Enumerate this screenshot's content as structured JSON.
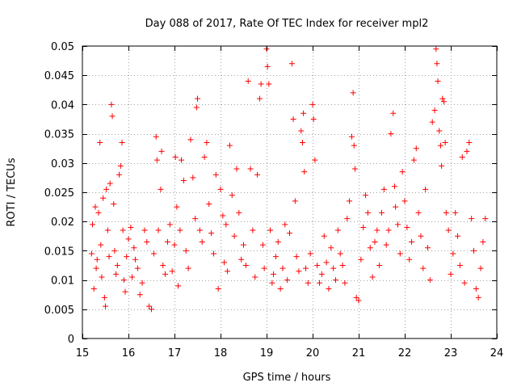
{
  "chart_data": {
    "type": "scatter",
    "title": "Day 088 of 2017, Rate Of TEC Index for receiver mpl2",
    "xlabel": "GPS time / hours",
    "ylabel": "ROTI / TECUs",
    "xlim": [
      15,
      24
    ],
    "ylim": [
      0,
      0.05
    ],
    "x_ticks": [
      "15",
      "16",
      "17",
      "18",
      "19",
      "20",
      "21",
      "22",
      "23",
      "24"
    ],
    "y_ticks": [
      "0",
      "0.005",
      "0.01",
      "0.015",
      "0.02",
      "0.025",
      "0.03",
      "0.035",
      "0.04",
      "0.045",
      "0.05"
    ],
    "grid": true,
    "marker": "+",
    "colors": {
      "series": "#ff0000",
      "grid": "#a0a0a0",
      "axis": "#000000"
    },
    "series": [
      {
        "name": "ROTI",
        "points": [
          [
            15.2,
            0.0145
          ],
          [
            15.22,
            0.0195
          ],
          [
            15.25,
            0.0085
          ],
          [
            15.28,
            0.0225
          ],
          [
            15.3,
            0.012
          ],
          [
            15.32,
            0.0135
          ],
          [
            15.35,
            0.0215
          ],
          [
            15.38,
            0.0335
          ],
          [
            15.4,
            0.016
          ],
          [
            15.42,
            0.0105
          ],
          [
            15.45,
            0.024
          ],
          [
            15.48,
            0.007
          ],
          [
            15.5,
            0.0055
          ],
          [
            15.52,
            0.0255
          ],
          [
            15.55,
            0.0185
          ],
          [
            15.58,
            0.014
          ],
          [
            15.6,
            0.0265
          ],
          [
            15.63,
            0.04
          ],
          [
            15.65,
            0.038
          ],
          [
            15.68,
            0.023
          ],
          [
            15.7,
            0.015
          ],
          [
            15.73,
            0.011
          ],
          [
            15.76,
            0.0125
          ],
          [
            15.8,
            0.028
          ],
          [
            15.83,
            0.0295
          ],
          [
            15.86,
            0.0335
          ],
          [
            15.88,
            0.0185
          ],
          [
            15.9,
            0.01
          ],
          [
            15.93,
            0.008
          ],
          [
            15.96,
            0.014
          ],
          [
            16.0,
            0.017
          ],
          [
            16.05,
            0.019
          ],
          [
            16.08,
            0.0105
          ],
          [
            16.12,
            0.0155
          ],
          [
            16.15,
            0.0135
          ],
          [
            16.2,
            0.012
          ],
          [
            16.25,
            0.0075
          ],
          [
            16.3,
            0.0095
          ],
          [
            16.35,
            0.0185
          ],
          [
            16.4,
            0.0165
          ],
          [
            16.45,
            0.0055
          ],
          [
            16.5,
            0.005
          ],
          [
            16.55,
            0.0145
          ],
          [
            16.6,
            0.0345
          ],
          [
            16.62,
            0.0305
          ],
          [
            16.65,
            0.0185
          ],
          [
            16.7,
            0.0255
          ],
          [
            16.72,
            0.032
          ],
          [
            16.75,
            0.0125
          ],
          [
            16.8,
            0.011
          ],
          [
            16.85,
            0.0165
          ],
          [
            16.9,
            0.0195
          ],
          [
            16.95,
            0.0115
          ],
          [
            17.0,
            0.016
          ],
          [
            17.02,
            0.031
          ],
          [
            17.05,
            0.0225
          ],
          [
            17.08,
            0.009
          ],
          [
            17.12,
            0.0185
          ],
          [
            17.15,
            0.0305
          ],
          [
            17.2,
            0.027
          ],
          [
            17.25,
            0.015
          ],
          [
            17.3,
            0.012
          ],
          [
            17.35,
            0.034
          ],
          [
            17.4,
            0.0275
          ],
          [
            17.45,
            0.0205
          ],
          [
            17.48,
            0.0395
          ],
          [
            17.5,
            0.041
          ],
          [
            17.55,
            0.0185
          ],
          [
            17.6,
            0.0165
          ],
          [
            17.65,
            0.031
          ],
          [
            17.7,
            0.0335
          ],
          [
            17.75,
            0.023
          ],
          [
            17.8,
            0.018
          ],
          [
            17.85,
            0.0145
          ],
          [
            17.9,
            0.028
          ],
          [
            17.95,
            0.0085
          ],
          [
            18.0,
            0.0255
          ],
          [
            18.05,
            0.021
          ],
          [
            18.08,
            0.013
          ],
          [
            18.12,
            0.0195
          ],
          [
            18.15,
            0.0115
          ],
          [
            18.2,
            0.033
          ],
          [
            18.25,
            0.0245
          ],
          [
            18.3,
            0.0175
          ],
          [
            18.35,
            0.029
          ],
          [
            18.4,
            0.0215
          ],
          [
            18.45,
            0.0135
          ],
          [
            18.5,
            0.016
          ],
          [
            18.55,
            0.0125
          ],
          [
            18.6,
            0.044
          ],
          [
            18.65,
            0.029
          ],
          [
            18.7,
            0.0185
          ],
          [
            18.75,
            0.0105
          ],
          [
            18.8,
            0.028
          ],
          [
            18.85,
            0.041
          ],
          [
            18.88,
            0.0435
          ],
          [
            18.92,
            0.016
          ],
          [
            18.95,
            0.012
          ],
          [
            19.0,
            0.0495
          ],
          [
            19.02,
            0.0465
          ],
          [
            19.05,
            0.0435
          ],
          [
            19.08,
            0.0185
          ],
          [
            19.12,
            0.0095
          ],
          [
            19.15,
            0.011
          ],
          [
            19.2,
            0.014
          ],
          [
            19.25,
            0.0165
          ],
          [
            19.3,
            0.0085
          ],
          [
            19.35,
            0.012
          ],
          [
            19.4,
            0.0195
          ],
          [
            19.45,
            0.01
          ],
          [
            19.5,
            0.018
          ],
          [
            19.55,
            0.047
          ],
          [
            19.58,
            0.0375
          ],
          [
            19.62,
            0.0235
          ],
          [
            19.65,
            0.014
          ],
          [
            19.7,
            0.0115
          ],
          [
            19.75,
            0.0355
          ],
          [
            19.78,
            0.0335
          ],
          [
            19.8,
            0.0385
          ],
          [
            19.82,
            0.0285
          ],
          [
            19.85,
            0.012
          ],
          [
            19.9,
            0.0095
          ],
          [
            19.95,
            0.0145
          ],
          [
            20.0,
            0.04
          ],
          [
            20.02,
            0.0375
          ],
          [
            20.05,
            0.0305
          ],
          [
            20.1,
            0.0125
          ],
          [
            20.15,
            0.0095
          ],
          [
            20.2,
            0.011
          ],
          [
            20.25,
            0.0175
          ],
          [
            20.3,
            0.013
          ],
          [
            20.35,
            0.0085
          ],
          [
            20.4,
            0.0155
          ],
          [
            20.45,
            0.012
          ],
          [
            20.5,
            0.01
          ],
          [
            20.55,
            0.0185
          ],
          [
            20.6,
            0.0145
          ],
          [
            20.65,
            0.0125
          ],
          [
            20.7,
            0.0095
          ],
          [
            20.75,
            0.0205
          ],
          [
            20.8,
            0.0235
          ],
          [
            20.85,
            0.0345
          ],
          [
            20.88,
            0.042
          ],
          [
            20.9,
            0.033
          ],
          [
            20.92,
            0.029
          ],
          [
            20.95,
            0.007
          ],
          [
            21.0,
            0.0065
          ],
          [
            21.05,
            0.0135
          ],
          [
            21.1,
            0.019
          ],
          [
            21.15,
            0.0245
          ],
          [
            21.2,
            0.0215
          ],
          [
            21.25,
            0.0155
          ],
          [
            21.3,
            0.0105
          ],
          [
            21.35,
            0.0165
          ],
          [
            21.4,
            0.0185
          ],
          [
            21.45,
            0.0125
          ],
          [
            21.5,
            0.0215
          ],
          [
            21.55,
            0.0255
          ],
          [
            21.6,
            0.016
          ],
          [
            21.65,
            0.0185
          ],
          [
            21.7,
            0.035
          ],
          [
            21.75,
            0.0385
          ],
          [
            21.78,
            0.026
          ],
          [
            21.8,
            0.0225
          ],
          [
            21.85,
            0.0195
          ],
          [
            21.9,
            0.0145
          ],
          [
            21.95,
            0.0285
          ],
          [
            22.0,
            0.0235
          ],
          [
            22.05,
            0.019
          ],
          [
            22.1,
            0.0135
          ],
          [
            22.15,
            0.0165
          ],
          [
            22.2,
            0.0305
          ],
          [
            22.25,
            0.0325
          ],
          [
            22.3,
            0.0215
          ],
          [
            22.35,
            0.0175
          ],
          [
            22.4,
            0.012
          ],
          [
            22.45,
            0.0255
          ],
          [
            22.5,
            0.0155
          ],
          [
            22.55,
            0.01
          ],
          [
            22.6,
            0.037
          ],
          [
            22.65,
            0.039
          ],
          [
            22.68,
            0.0495
          ],
          [
            22.7,
            0.047
          ],
          [
            22.72,
            0.044
          ],
          [
            22.75,
            0.0355
          ],
          [
            22.78,
            0.033
          ],
          [
            22.8,
            0.0295
          ],
          [
            22.82,
            0.041
          ],
          [
            22.85,
            0.0405
          ],
          [
            22.88,
            0.0335
          ],
          [
            22.9,
            0.0215
          ],
          [
            22.95,
            0.0185
          ],
          [
            23.0,
            0.011
          ],
          [
            23.05,
            0.0145
          ],
          [
            23.1,
            0.0215
          ],
          [
            23.15,
            0.0175
          ],
          [
            23.2,
            0.0125
          ],
          [
            23.25,
            0.031
          ],
          [
            23.3,
            0.0095
          ],
          [
            23.35,
            0.032
          ],
          [
            23.4,
            0.0335
          ],
          [
            23.45,
            0.0205
          ],
          [
            23.5,
            0.015
          ],
          [
            23.55,
            0.0085
          ],
          [
            23.6,
            0.007
          ],
          [
            23.65,
            0.012
          ],
          [
            23.7,
            0.0165
          ],
          [
            23.75,
            0.0205
          ]
        ]
      }
    ]
  }
}
